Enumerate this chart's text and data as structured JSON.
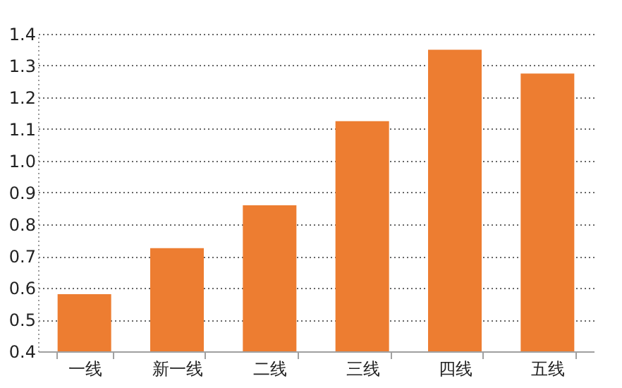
{
  "chart_data": {
    "type": "bar",
    "categories": [
      "一线",
      "新一线",
      "二线",
      "三线",
      "四线",
      "五线"
    ],
    "values": [
      0.58,
      0.725,
      0.86,
      1.125,
      1.35,
      1.275
    ],
    "color": "#ed7d31",
    "ylim": [
      0.4,
      1.4
    ],
    "yticks": [
      0.4,
      0.5,
      0.6,
      0.7,
      0.8,
      0.9,
      {
        "value": 1.0,
        "label": "1.0"
      },
      1.1,
      1.2,
      1.3,
      1.4
    ],
    "grid": "y"
  }
}
